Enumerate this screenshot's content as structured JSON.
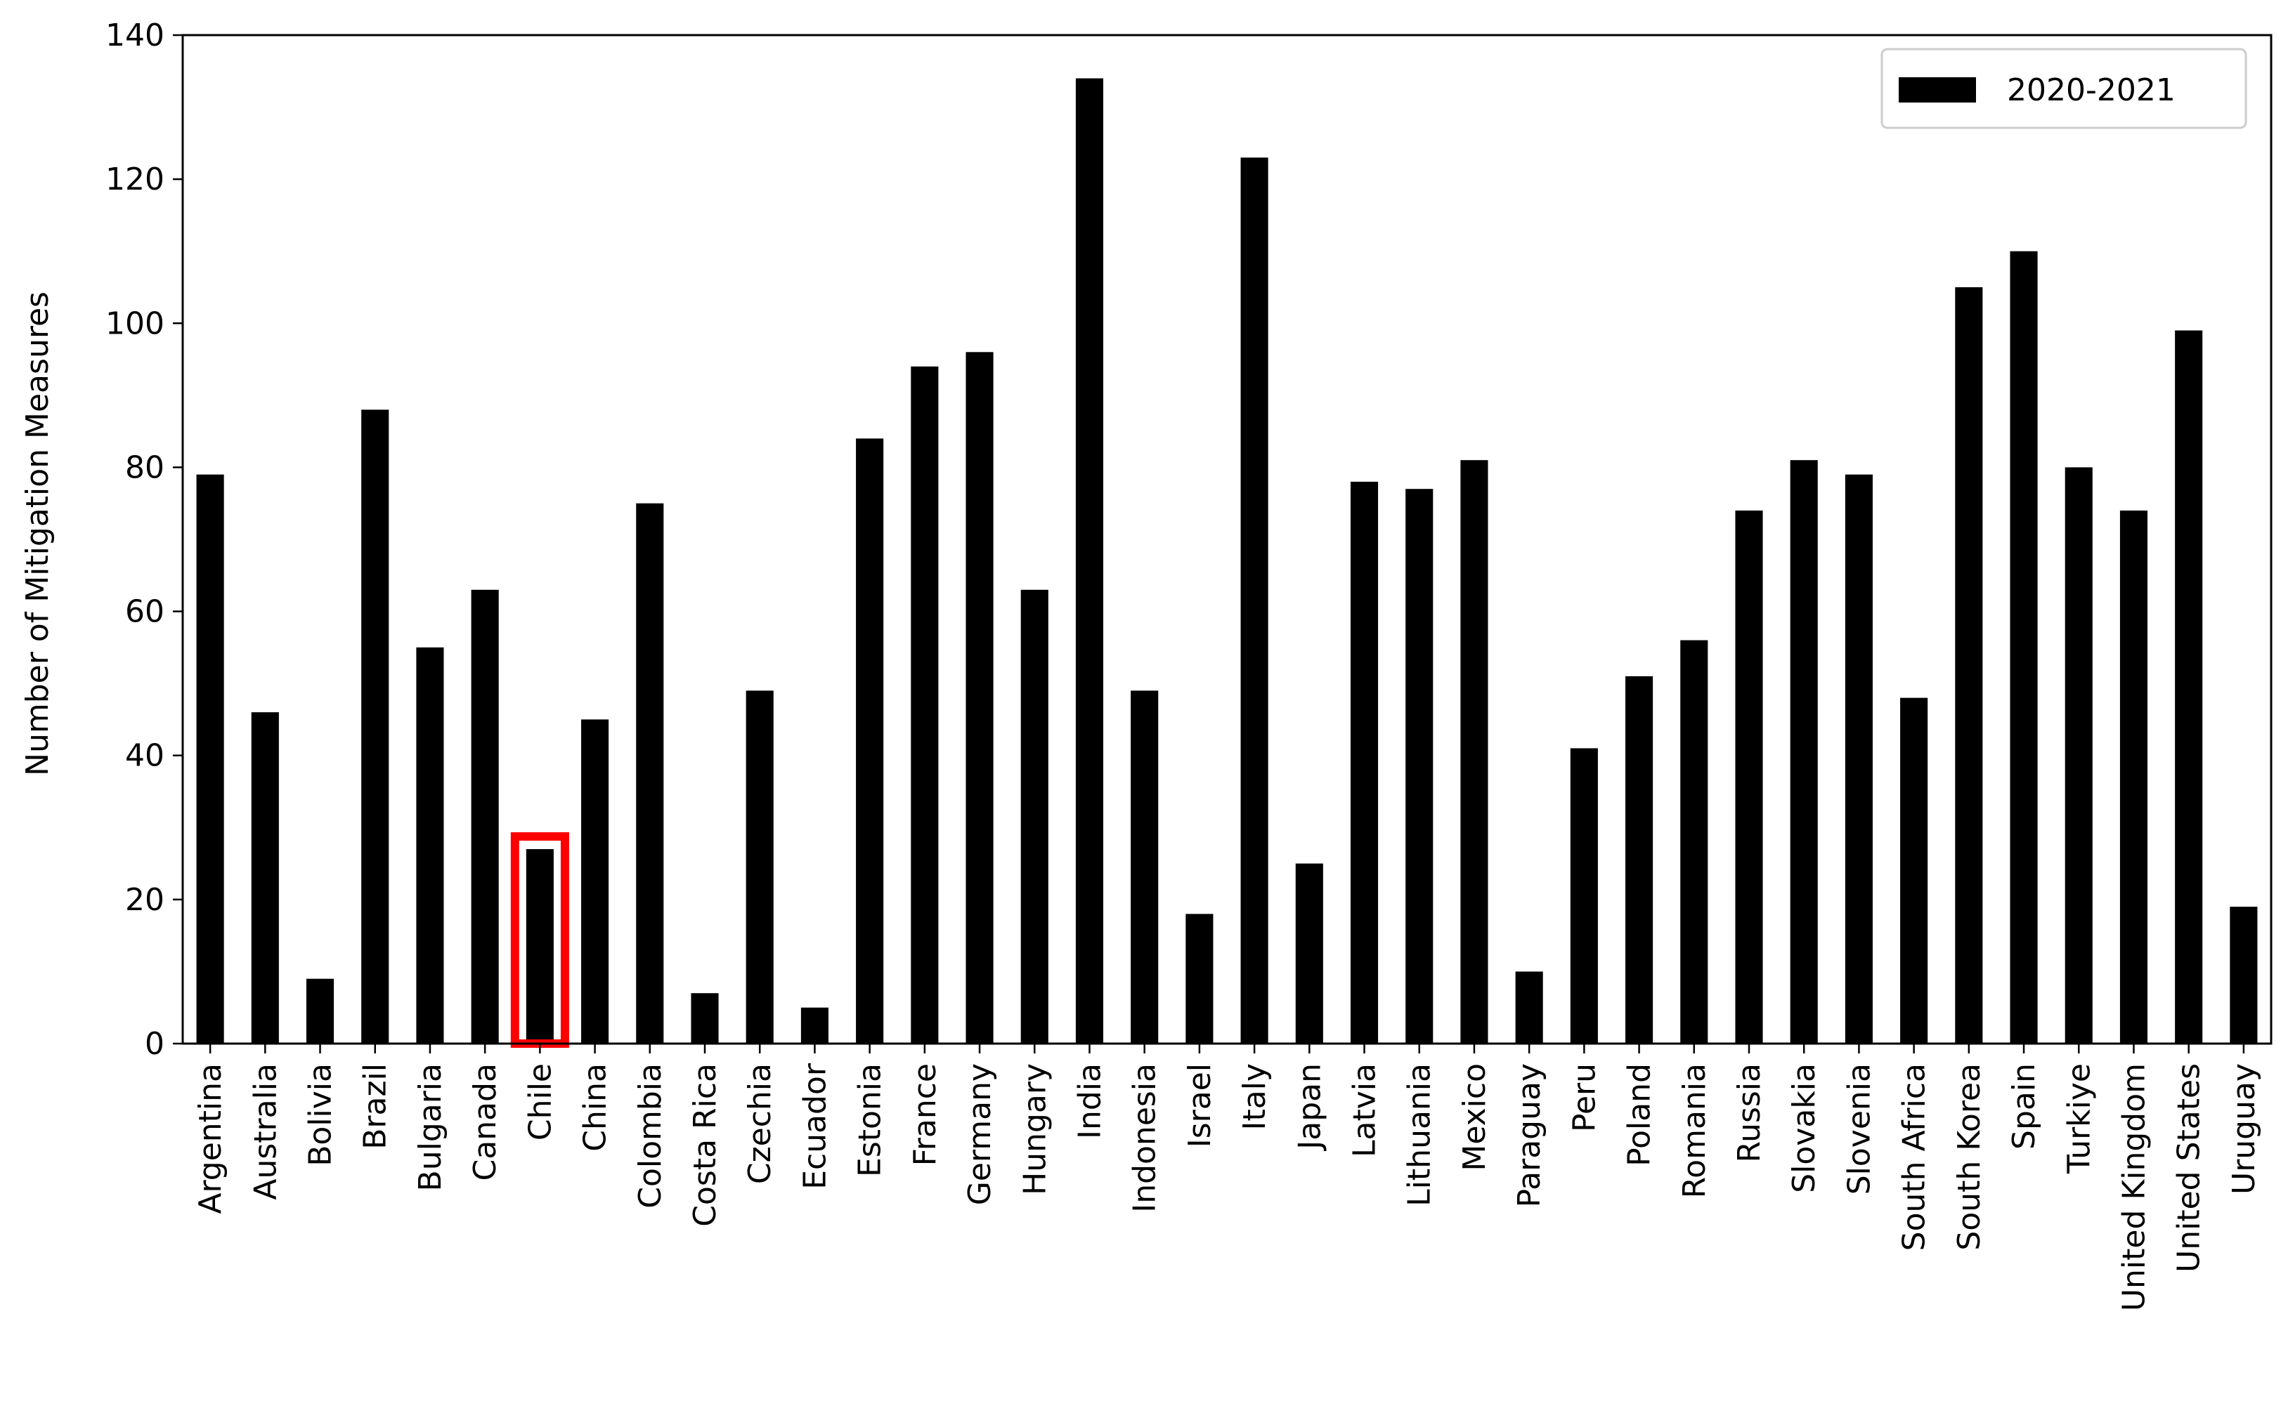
{
  "chart_data": {
    "type": "bar",
    "title": "",
    "xlabel": "",
    "ylabel": "Number of Mitigation Measures",
    "ylim": [
      0,
      140
    ],
    "yticks": [
      0,
      20,
      40,
      60,
      80,
      100,
      120,
      140
    ],
    "grid": false,
    "legend_position": "top-right",
    "categories": [
      "Argentina",
      "Australia",
      "Bolivia",
      "Brazil",
      "Bulgaria",
      "Canada",
      "Chile",
      "China",
      "Colombia",
      "Costa Rica",
      "Czechia",
      "Ecuador",
      "Estonia",
      "France",
      "Germany",
      "Hungary",
      "India",
      "Indonesia",
      "Israel",
      "Italy",
      "Japan",
      "Latvia",
      "Lithuania",
      "Mexico",
      "Paraguay",
      "Peru",
      "Poland",
      "Romania",
      "Russia",
      "Slovakia",
      "Slovenia",
      "South Africa",
      "South Korea",
      "Spain",
      "Turkiye",
      "United Kingdom",
      "United States",
      "Uruguay"
    ],
    "series": [
      {
        "name": "2020-2021",
        "color": "#000000",
        "values": [
          79,
          46,
          9,
          88,
          55,
          63,
          27,
          45,
          75,
          7,
          49,
          5,
          84,
          94,
          96,
          63,
          134,
          49,
          18,
          123,
          25,
          78,
          77,
          81,
          10,
          41,
          51,
          56,
          74,
          81,
          79,
          48,
          105,
          110,
          80,
          74,
          99,
          19
        ]
      }
    ],
    "highlight": {
      "category": "Chile",
      "color": "#ff0000"
    }
  }
}
